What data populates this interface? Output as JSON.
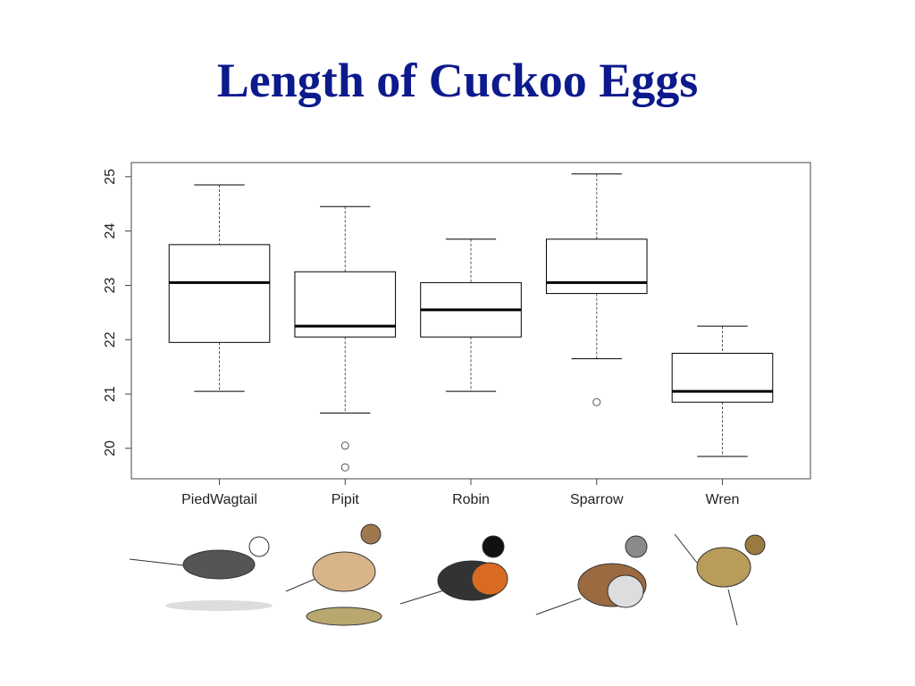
{
  "chart_data": {
    "type": "boxplot",
    "title": "Length of Cuckoo Eggs",
    "categories": [
      "PiedWagtail",
      "Pipit",
      "Robin",
      "Sparrow",
      "Wren"
    ],
    "boxes": [
      {
        "min": 21.05,
        "q1": 21.95,
        "median": 23.05,
        "q3": 23.75,
        "max": 24.85
      },
      {
        "min": 20.65,
        "q1": 22.05,
        "median": 22.25,
        "q3": 23.25,
        "max": 24.45,
        "outliers": [
          20.05,
          19.65
        ]
      },
      {
        "min": 21.05,
        "q1": 22.05,
        "median": 22.55,
        "q3": 23.05,
        "max": 23.85
      },
      {
        "min": 21.65,
        "q1": 22.85,
        "median": 23.05,
        "q3": 23.85,
        "max": 25.05,
        "outliers": [
          20.85
        ]
      },
      {
        "min": 19.85,
        "q1": 20.85,
        "median": 21.05,
        "q3": 21.75,
        "max": 22.25
      }
    ],
    "color": "#000000",
    "ylim": [
      19.44,
      25.26
    ],
    "yticks": [
      20,
      21,
      22,
      23,
      24,
      25
    ]
  }
}
